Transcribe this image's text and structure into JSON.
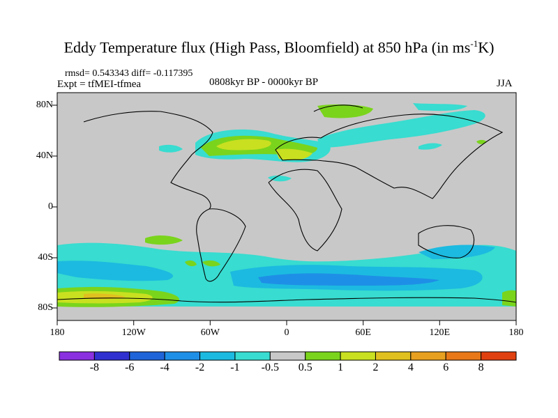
{
  "title": {
    "main": "Eddy Temperature flux (High Pass, Bloomfield) at 850 hPa (in ms",
    "sup": "-1",
    "tail": "K)"
  },
  "stats": "rmsd= 0.543343 diff= -0.117395",
  "experiment": "Expt = tfMEI-tfmea",
  "period": "0808kyr BP - 0000kyr BP",
  "season": "JJA",
  "map": {
    "lat_ticks": [
      "80N",
      "40N",
      "0",
      "40S",
      "80S"
    ],
    "lon_ticks": [
      "180",
      "120W",
      "60W",
      "0",
      "60E",
      "120E",
      "180"
    ]
  },
  "colorbar": {
    "colors": [
      "#8a30e0",
      "#3030d0",
      "#1f64d8",
      "#1e8fe6",
      "#1cbae0",
      "#38dcd0",
      "#c8c8c8",
      "#7ad41c",
      "#c8e020",
      "#e0c020",
      "#e8a020",
      "#e87818",
      "#e04010"
    ],
    "labels": [
      "-8",
      "-6",
      "-4",
      "-2",
      "-1",
      "-0.5",
      "0.5",
      "1",
      "2",
      "4",
      "6",
      "8"
    ]
  }
}
